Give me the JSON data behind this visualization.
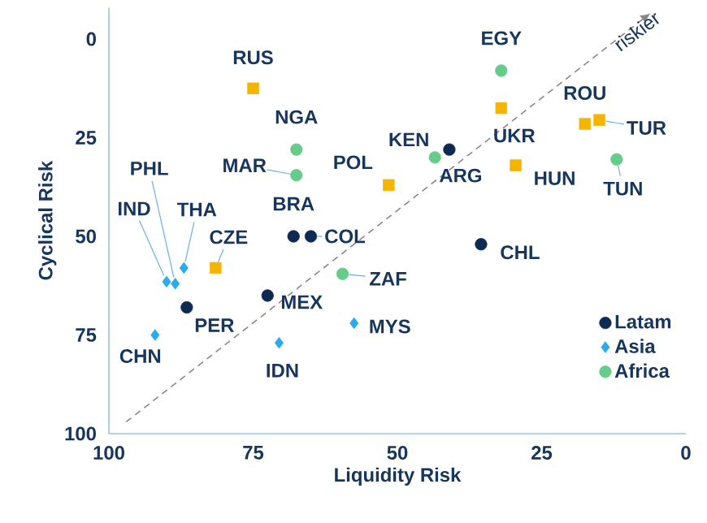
{
  "chart_data": {
    "type": "scatter",
    "xlabel": "Liquidity Risk",
    "ylabel": "Cyclical Risk",
    "xlim": [
      100,
      0
    ],
    "ylim": [
      100,
      -8
    ],
    "xticks": [
      100,
      75,
      50,
      25,
      0
    ],
    "yticks": [
      0,
      25,
      50,
      75,
      100
    ],
    "legend": "bottom right",
    "series": [
      {
        "name": "Latam",
        "color": "#0f2a52",
        "marker": "circle",
        "x": [
          68,
          65,
          41,
          35.5,
          86.5,
          72.5
        ],
        "values": [
          50,
          50,
          28,
          52,
          68,
          65
        ],
        "value_labels": [
          "BRA",
          "COL",
          "ARG",
          "CHL",
          "PER",
          "MEX"
        ]
      },
      {
        "name": "Asia",
        "color": "#2aaaf0",
        "marker": "diamond",
        "x": [
          88.5,
          90,
          87,
          92,
          70.5,
          57.5
        ],
        "values": [
          62,
          61.5,
          58,
          75,
          77,
          72
        ],
        "value_labels": [
          "PHL",
          "IND",
          "THA",
          "CHN",
          "IDN",
          "MYS"
        ]
      },
      {
        "name": "Africa",
        "color": "#66cc8a",
        "marker": "circle",
        "x": [
          67.5,
          67.5,
          43.5,
          32,
          12,
          59.5
        ],
        "values": [
          28,
          34.5,
          30,
          8,
          30.5,
          59.5
        ],
        "value_labels": [
          "NGA",
          "MAR",
          "KEN",
          "EGY",
          "TUN",
          "ZAF"
        ]
      },
      {
        "color": "#f5b400",
        "marker": "square",
        "x": [
          75,
          51.5,
          32,
          29.5,
          17.5,
          15,
          81.5
        ],
        "values": [
          12.5,
          37,
          17.5,
          32,
          21.5,
          20.5,
          58
        ],
        "value_labels": [
          "RUS",
          "POL",
          "UKR",
          "HUN",
          "ROU",
          "TUR",
          "CZE"
        ]
      },
      {
        "type": "line",
        "color": "#888888",
        "marker": "none",
        "line_style": "dashed",
        "x": [
          97,
          7.5
        ],
        "values": [
          97,
          -5
        ]
      }
    ],
    "annotations": [
      {
        "text": "riskier",
        "x": 8.5,
        "y": -2
      }
    ]
  }
}
